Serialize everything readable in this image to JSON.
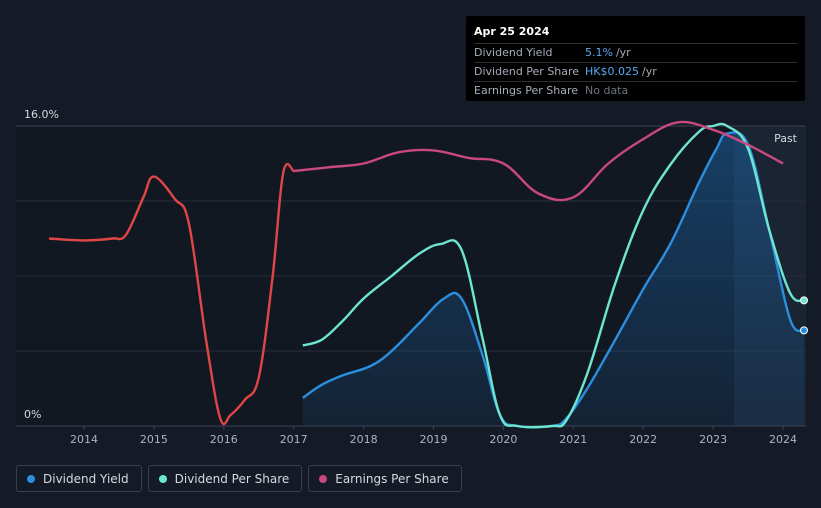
{
  "tooltip": {
    "date": "Apr 25 2024",
    "rows": [
      {
        "label": "Dividend Yield",
        "value": "5.1%",
        "unit": "/yr"
      },
      {
        "label": "Dividend Per Share",
        "value": "HK$0.025",
        "unit": "/yr"
      },
      {
        "label": "Earnings Per Share",
        "value": "No data",
        "unit": ""
      }
    ]
  },
  "colors": {
    "background": "#151b26",
    "dividend_yield": "#2b8fe0",
    "dividend_per_share": "#6ee6cf",
    "earnings_per_share": "#c9497f",
    "earnings_negative": "#e04646"
  },
  "chart_data": {
    "type": "line",
    "ylim": [
      0,
      16
    ],
    "y_tick_labels": [
      "16.0%",
      "0%"
    ],
    "x_ticks": [
      "2014",
      "2015",
      "2016",
      "2017",
      "2018",
      "2019",
      "2020",
      "2021",
      "2022",
      "2023",
      "2024"
    ],
    "past_label": "Past",
    "grid": true,
    "legend_position": "bottom-left",
    "series": [
      {
        "name": "Dividend Yield",
        "key": "dividend_yield",
        "x": [
          2017.13,
          2017.4,
          2017.7,
          2018.1,
          2018.4,
          2018.8,
          2019.15,
          2019.4,
          2019.7,
          2019.95,
          2020.2,
          2020.7,
          2020.9,
          2021.2,
          2021.6,
          2022.0,
          2022.4,
          2022.8,
          2023.05,
          2023.2,
          2023.5,
          2023.8,
          2024.1,
          2024.3
        ],
        "values": [
          1.5,
          2.2,
          2.7,
          3.2,
          4.0,
          5.5,
          6.8,
          6.8,
          3.8,
          0.6,
          0.0,
          0.0,
          0.4,
          2.0,
          4.6,
          7.3,
          9.8,
          13.0,
          14.8,
          15.6,
          15.0,
          10.5,
          5.7,
          5.1
        ]
      },
      {
        "name": "Dividend Per Share",
        "key": "dividend_per_share",
        "x": [
          2017.13,
          2017.4,
          2017.7,
          2018.0,
          2018.4,
          2018.8,
          2019.1,
          2019.4,
          2019.7,
          2019.95,
          2020.2,
          2020.7,
          2020.9,
          2021.2,
          2021.6,
          2022.0,
          2022.4,
          2022.8,
          2023.0,
          2023.2,
          2023.5,
          2023.8,
          2024.1,
          2024.3
        ],
        "values": [
          4.3,
          4.6,
          5.6,
          6.8,
          8.0,
          9.2,
          9.7,
          9.4,
          4.7,
          0.6,
          0.0,
          0.0,
          0.3,
          2.8,
          7.6,
          11.5,
          14.0,
          15.7,
          16.0,
          16.0,
          14.8,
          10.5,
          7.1,
          6.7
        ]
      },
      {
        "name": "Earnings Per Share",
        "key": "earnings_per_share",
        "x": [
          2013.5,
          2014.0,
          2014.4,
          2014.6,
          2014.85,
          2015.0,
          2015.3,
          2015.5,
          2015.75,
          2015.95,
          2016.1,
          2016.3,
          2016.5,
          2016.7,
          2016.85,
          2017.0,
          2017.5,
          2018.0,
          2018.5,
          2019.0,
          2019.5,
          2020.0,
          2020.5,
          2021.0,
          2021.5,
          2022.0,
          2022.5,
          2023.0,
          2023.5,
          2024.0
        ],
        "values": [
          10.0,
          9.9,
          10.0,
          10.2,
          12.2,
          13.3,
          12.1,
          10.8,
          4.5,
          0.4,
          0.6,
          1.4,
          2.6,
          8.0,
          13.5,
          13.6,
          13.8,
          14.0,
          14.6,
          14.7,
          14.3,
          14.0,
          12.4,
          12.2,
          14.0,
          15.3,
          16.2,
          15.8,
          15.0,
          14.0
        ]
      }
    ]
  },
  "legend": [
    {
      "label": "Dividend Yield",
      "key": "dividend_yield"
    },
    {
      "label": "Dividend Per Share",
      "key": "dividend_per_share"
    },
    {
      "label": "Earnings Per Share",
      "key": "earnings_per_share"
    }
  ]
}
